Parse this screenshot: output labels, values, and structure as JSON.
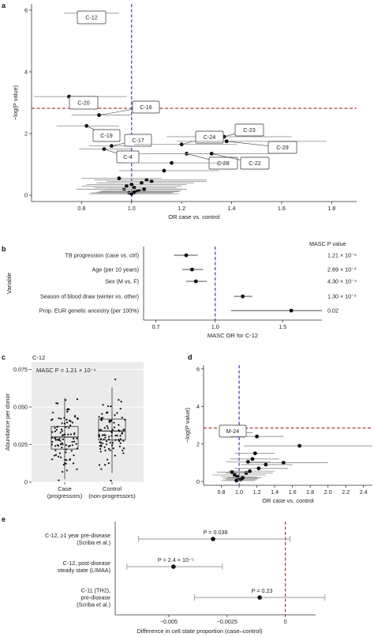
{
  "panel_labels": [
    "a",
    "b",
    "c",
    "d",
    "e"
  ],
  "chart_data": [
    {
      "id": "a",
      "type": "scatter",
      "xlabel": "OR case vs. control",
      "ylabel": "−log(P value)",
      "xlim": [
        0.6,
        1.9
      ],
      "ylim": [
        -0.2,
        6.2
      ],
      "xticks": [
        "0.8",
        "1.0",
        "1.2",
        "1.4",
        "1.6",
        "1.8"
      ],
      "xtick_values": [
        0.8,
        1.0,
        1.2,
        1.4,
        1.6,
        1.8
      ],
      "yticks": [
        "0",
        "2",
        "4",
        "6"
      ],
      "ytick_values": [
        0,
        2,
        4,
        6
      ],
      "vline": 1.0,
      "hline": 2.82,
      "points": [
        {
          "label": "C-12",
          "or": 0.84,
          "lo": 0.73,
          "hi": 0.95,
          "y": 5.9
        },
        {
          "label": "C-20",
          "or": 0.75,
          "lo": 0.61,
          "hi": 0.98,
          "y": 3.2
        },
        {
          "label": "C-16",
          "or": 0.87,
          "lo": 0.76,
          "hi": 1.0,
          "y": 2.6
        },
        {
          "label": "C-19",
          "or": 0.82,
          "lo": 0.7,
          "hi": 0.95,
          "y": 2.25
        },
        {
          "label": "C-17",
          "or": 0.92,
          "lo": 0.83,
          "hi": 1.0,
          "y": 1.6
        },
        {
          "label": "C-4",
          "or": 0.89,
          "lo": 0.79,
          "hi": 1.0,
          "y": 1.5
        },
        {
          "label": "C-23",
          "or": 1.37,
          "lo": 1.14,
          "hi": 1.64,
          "y": 1.9
        },
        {
          "label": "C-24",
          "or": 1.2,
          "lo": 1.01,
          "hi": 1.42,
          "y": 1.65
        },
        {
          "label": "C-29",
          "or": 1.38,
          "lo": 1.18,
          "hi": 1.78,
          "y": 1.75
        },
        {
          "label": "C-28",
          "or": 1.22,
          "lo": 1.03,
          "hi": 1.45,
          "y": 1.35
        },
        {
          "label": "C-22",
          "or": 1.32,
          "lo": 1.07,
          "hi": 1.6,
          "y": 1.35
        },
        {
          "label": "",
          "or": 1.16,
          "lo": 0.98,
          "hi": 1.38,
          "y": 1.05
        },
        {
          "label": "",
          "or": 1.13,
          "lo": 0.95,
          "hi": 1.35,
          "y": 0.8
        },
        {
          "label": "",
          "or": 1.06,
          "lo": 0.85,
          "hi": 1.3,
          "y": 0.5
        },
        {
          "label": "",
          "or": 0.95,
          "lo": 0.8,
          "hi": 1.12,
          "y": 0.55
        },
        {
          "label": "",
          "or": 1.08,
          "lo": 0.9,
          "hi": 1.3,
          "y": 0.45
        },
        {
          "label": "",
          "or": 1.04,
          "lo": 0.86,
          "hi": 1.25,
          "y": 0.4
        },
        {
          "label": "",
          "or": 1.0,
          "lo": 0.82,
          "hi": 1.22,
          "y": 0.35
        },
        {
          "label": "",
          "or": 0.98,
          "lo": 0.8,
          "hi": 1.2,
          "y": 0.3
        },
        {
          "label": "",
          "or": 0.97,
          "lo": 0.78,
          "hi": 1.2,
          "y": 0.2
        },
        {
          "label": "",
          "or": 1.01,
          "lo": 0.85,
          "hi": 1.18,
          "y": 0.25
        },
        {
          "label": "",
          "or": 1.03,
          "lo": 0.88,
          "hi": 1.2,
          "y": 0.15
        },
        {
          "label": "",
          "or": 1.02,
          "lo": 0.87,
          "hi": 1.19,
          "y": 0.12
        },
        {
          "label": "",
          "or": 1.05,
          "lo": 0.9,
          "hi": 1.22,
          "y": 0.2
        },
        {
          "label": "",
          "or": 0.99,
          "lo": 0.84,
          "hi": 1.16,
          "y": 0.08
        },
        {
          "label": "",
          "or": 1.0,
          "lo": 0.83,
          "hi": 1.19,
          "y": 0.05
        },
        {
          "label": "",
          "or": 1.01,
          "lo": 0.86,
          "hi": 1.17,
          "y": 0.1
        }
      ]
    },
    {
      "id": "b",
      "type": "scatter",
      "xlabel": "MASC OR for C-12",
      "ylabel": "Variable",
      "xlim": [
        0.65,
        1.9
      ],
      "xticks": [
        "0.7",
        "1.0",
        "1.5"
      ],
      "xtick_values": [
        0.7,
        1.0,
        1.5
      ],
      "vline": 1.0,
      "pvalue_header": "MASC P value",
      "rows": [
        {
          "label": "TB progression (case vs. ctrl)",
          "or": 0.84,
          "lo": 0.78,
          "hi": 0.9,
          "p": "1.21 × 10⁻⁶"
        },
        {
          "label": "Age (per 10 years)",
          "or": 0.87,
          "lo": 0.82,
          "hi": 0.93,
          "p": "2.69 × 10⁻³"
        },
        {
          "label": "Sex (M vs. F)",
          "or": 0.89,
          "lo": 0.84,
          "hi": 0.95,
          "p": "4.30 × 10⁻⁴"
        },
        {
          "label": "Season of blood draw (winter vs. other)",
          "or": 1.18,
          "lo": 1.12,
          "hi": 1.25,
          "p": "1.30 × 10⁻³"
        },
        {
          "label": "Prop. EUR genetic ancestry (per 100%)",
          "or": 1.58,
          "lo": 1.1,
          "hi": 2.28,
          "p": "0.02"
        }
      ]
    },
    {
      "id": "c",
      "type": "box",
      "title": "C-12",
      "annotation": "MASC P = 1.21 × 10⁻⁶",
      "ylabel": "Abundance per donor",
      "ylim": [
        0.0,
        0.08
      ],
      "yticks": [
        "0",
        "0.025",
        "0.050",
        "0.075"
      ],
      "ytick_values": [
        0.0,
        0.025,
        0.05,
        0.075
      ],
      "categories": [
        "Case\n(progressors)",
        "Control\n(non-progressors)"
      ],
      "boxes": [
        {
          "q1": 0.022,
          "median": 0.03,
          "q3": 0.037,
          "whisker_lo": 0.002,
          "whisker_hi": 0.056
        },
        {
          "q1": 0.028,
          "median": 0.034,
          "q3": 0.042,
          "whisker_lo": 0.006,
          "whisker_hi": 0.063
        }
      ]
    },
    {
      "id": "d",
      "type": "scatter",
      "xlabel": "OR case vs. control",
      "ylabel": "−log(P value)",
      "xlim": [
        0.6,
        2.5
      ],
      "ylim": [
        -0.2,
        6.2
      ],
      "xticks": [
        "0.8",
        "1.0",
        "1.2",
        "1.4",
        "1.6",
        "1.8",
        "2.0",
        "2.2",
        "2.4"
      ],
      "xtick_values": [
        0.8,
        1.0,
        1.2,
        1.4,
        1.6,
        1.8,
        2.0,
        2.2,
        2.4
      ],
      "yticks": [
        "0",
        "2",
        "4",
        "6"
      ],
      "ytick_values": [
        0,
        2,
        4,
        6
      ],
      "vline": 1.0,
      "hline": 2.85,
      "points": [
        {
          "label": "M-24",
          "or": 1.05,
          "lo": 0.95,
          "hi": 1.15,
          "y": 2.6
        },
        {
          "label": "",
          "or": 1.68,
          "lo": 1.05,
          "hi": 2.5,
          "y": 1.9
        },
        {
          "label": "",
          "or": 1.5,
          "lo": 1.1,
          "hi": 2.0,
          "y": 1.0
        },
        {
          "label": "",
          "or": 1.2,
          "lo": 0.9,
          "hi": 1.5,
          "y": 2.4
        },
        {
          "label": "",
          "or": 1.18,
          "lo": 0.95,
          "hi": 1.4,
          "y": 1.5
        },
        {
          "label": "",
          "or": 1.15,
          "lo": 0.9,
          "hi": 1.45,
          "y": 1.2
        },
        {
          "label": "",
          "or": 1.1,
          "lo": 0.85,
          "hi": 1.35,
          "y": 1.05
        },
        {
          "label": "",
          "or": 1.3,
          "lo": 1.02,
          "hi": 1.6,
          "y": 0.9
        },
        {
          "label": "",
          "or": 1.22,
          "lo": 0.95,
          "hi": 1.55,
          "y": 0.7
        },
        {
          "label": "",
          "or": 1.12,
          "lo": 0.88,
          "hi": 1.4,
          "y": 0.55
        },
        {
          "label": "",
          "or": 1.08,
          "lo": 0.85,
          "hi": 1.38,
          "y": 0.45
        },
        {
          "label": "",
          "or": 0.92,
          "lo": 0.75,
          "hi": 1.1,
          "y": 0.5
        },
        {
          "label": "",
          "or": 0.95,
          "lo": 0.7,
          "hi": 1.3,
          "y": 0.35
        },
        {
          "label": "",
          "or": 0.98,
          "lo": 0.8,
          "hi": 1.2,
          "y": 0.25
        },
        {
          "label": "",
          "or": 1.0,
          "lo": 0.82,
          "hi": 1.22,
          "y": 0.15
        },
        {
          "label": "",
          "or": 1.02,
          "lo": 0.85,
          "hi": 1.2,
          "y": 0.1
        },
        {
          "label": "",
          "or": 0.97,
          "lo": 0.8,
          "hi": 1.18,
          "y": 0.05
        },
        {
          "label": "",
          "or": 1.04,
          "lo": 0.87,
          "hi": 1.25,
          "y": 0.2
        }
      ]
    },
    {
      "id": "e",
      "type": "scatter",
      "xlabel": "Difference in cell state proportion (case–control)",
      "xlim": [
        -0.0073,
        0.0013
      ],
      "xticks": [
        "−0.005",
        "−0.0025",
        "0"
      ],
      "xtick_values": [
        -0.005,
        -0.0025,
        0.0
      ],
      "vline": 0.0,
      "rows": [
        {
          "label": [
            "C-12, ≥1 year pre-disease",
            "(Scriba et al.)"
          ],
          "est": -0.0031,
          "lo": -0.0063,
          "hi": 0.0002,
          "p": "P = 0.038"
        },
        {
          "label": [
            "C-12, post-disease",
            "steady state (LIMAA)"
          ],
          "est": -0.0048,
          "lo": -0.0068,
          "hi": -0.0027,
          "p": "P = 2.4 × 10⁻⁵"
        },
        {
          "label": [
            "C-11 (TH2),",
            "pre-disease",
            "(Scriba et al.)"
          ],
          "est": -0.0011,
          "lo": -0.0039,
          "hi": 0.0017,
          "p": "P = 0.23"
        }
      ]
    }
  ]
}
